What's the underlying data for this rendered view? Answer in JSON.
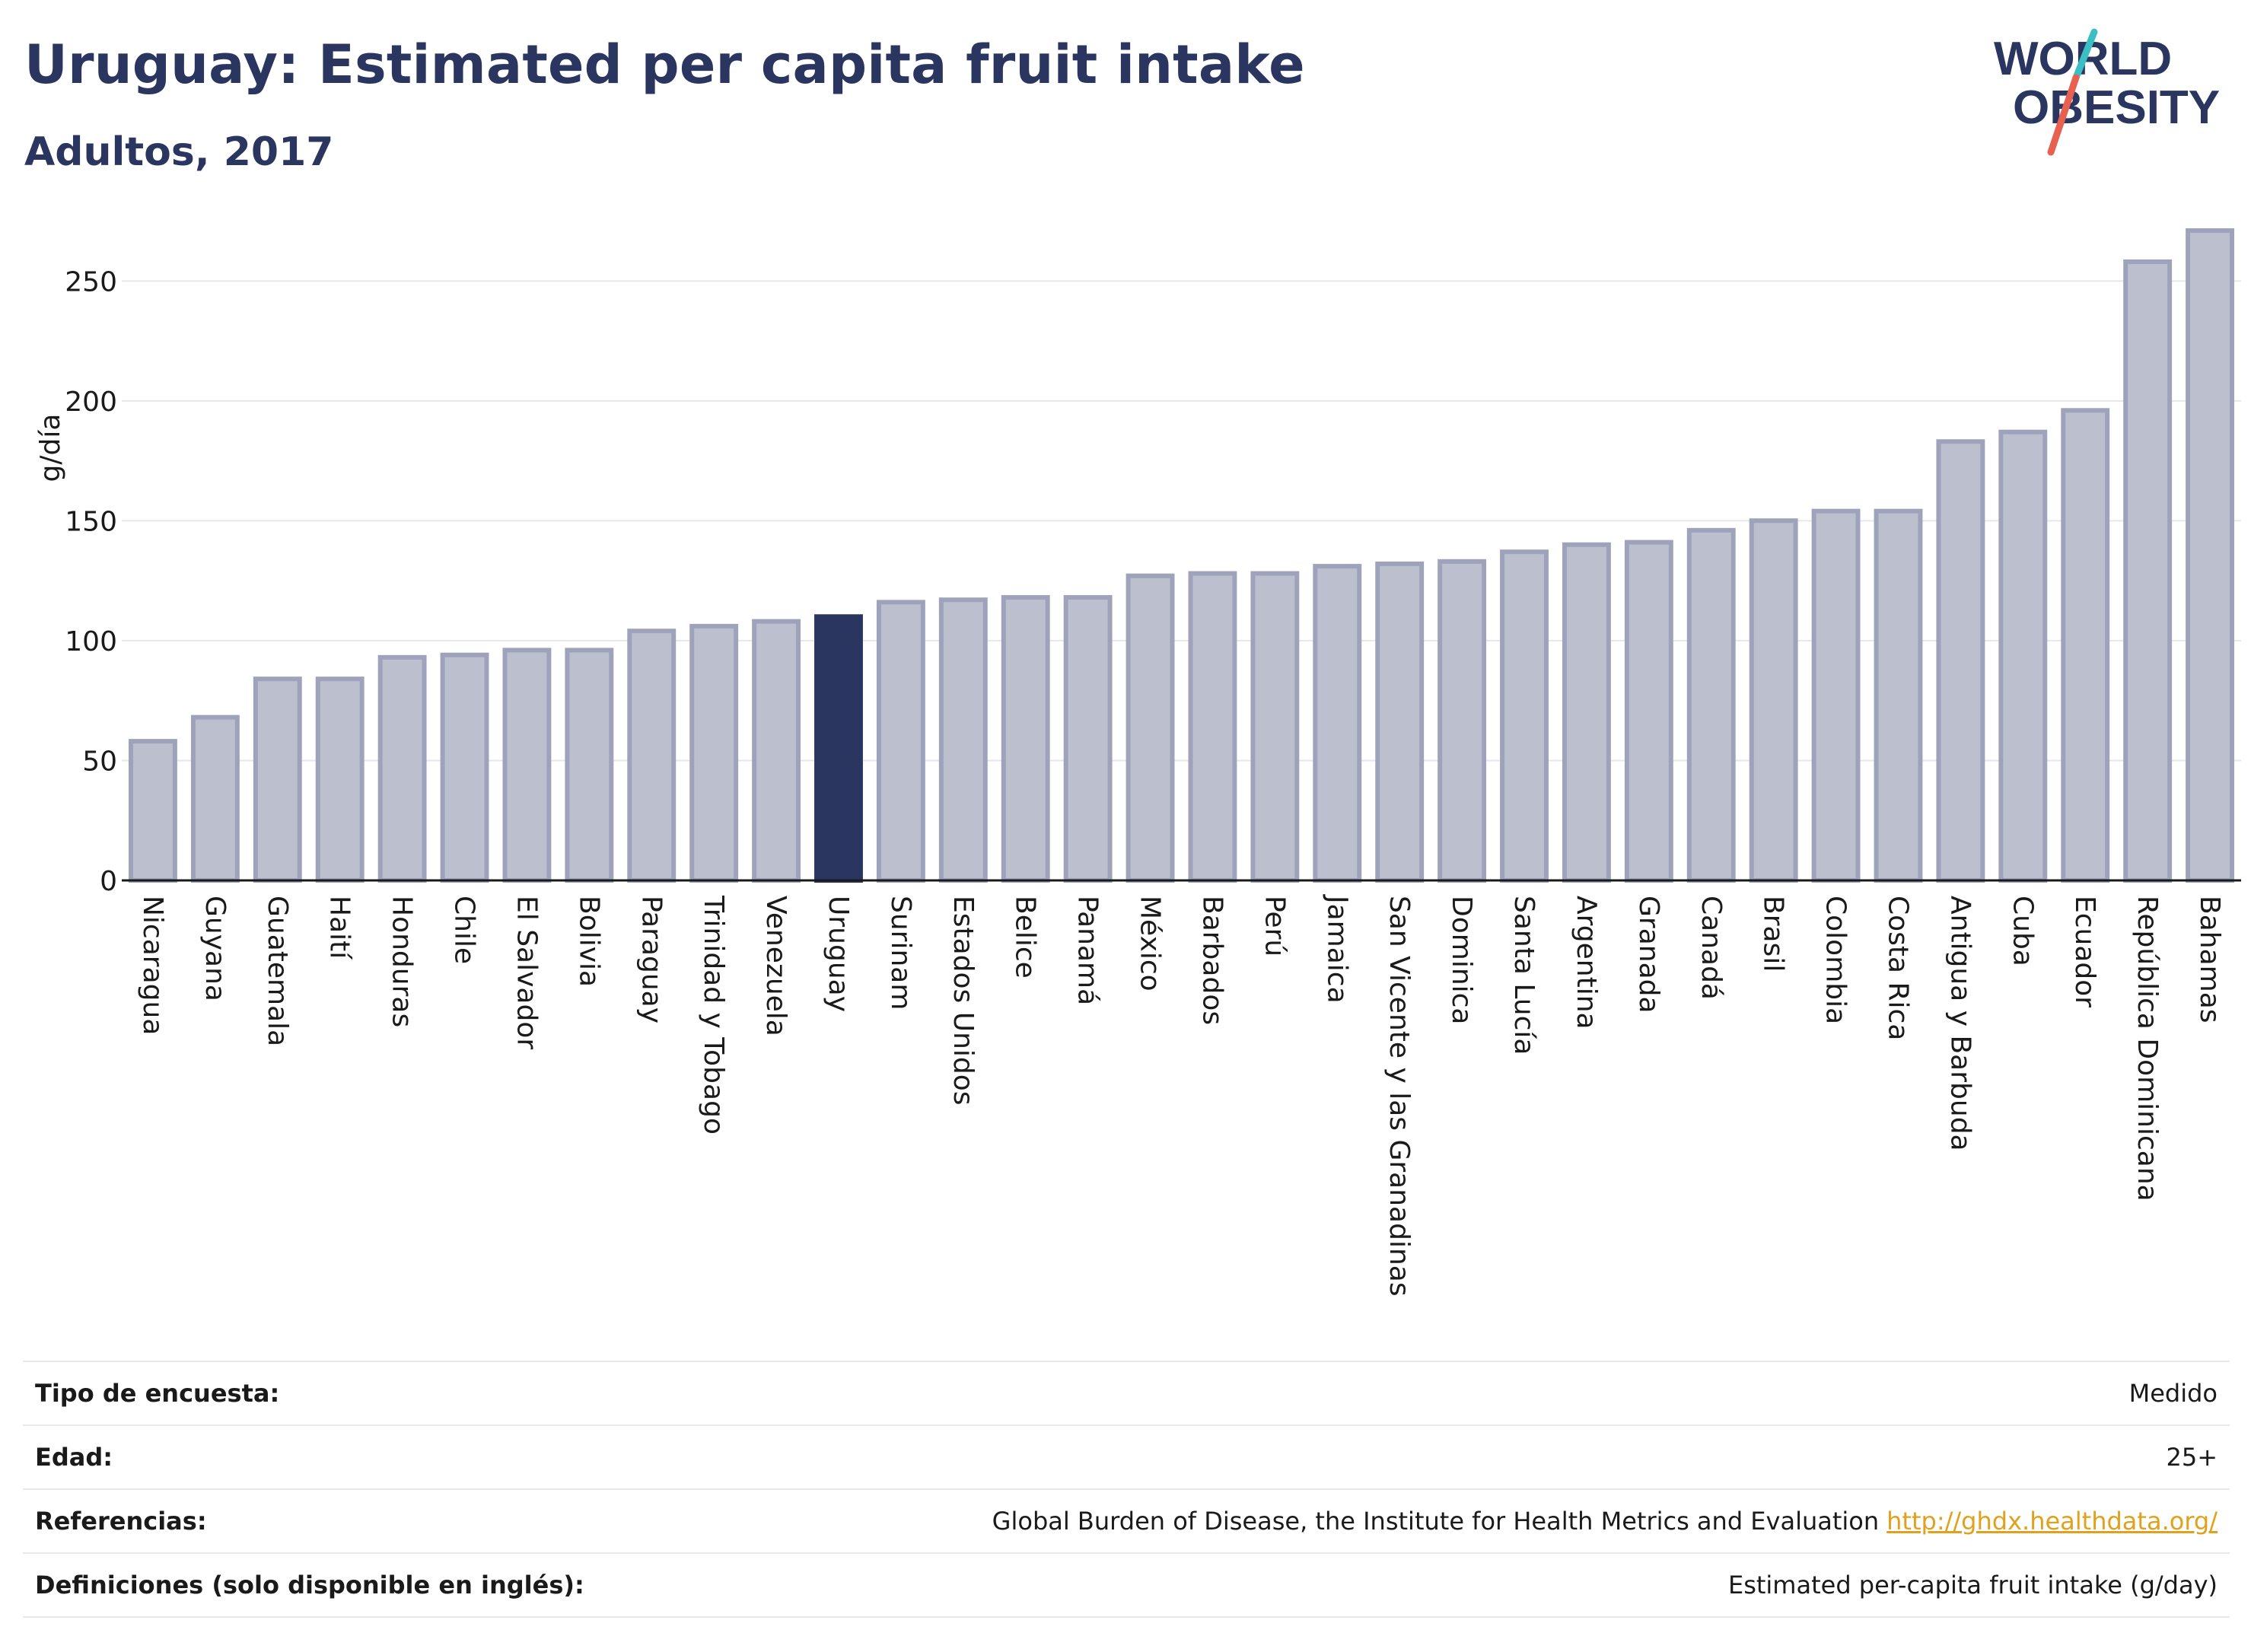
{
  "header": {
    "title": "Uruguay: Estimated per capita fruit intake",
    "subtitle": "Adultos, 2017"
  },
  "logo": {
    "line1": "WORLD",
    "line2": "OBESITY"
  },
  "colors": {
    "bar_default_fill": "#bcc0ce",
    "bar_default_stroke": "#9ea3bb",
    "bar_highlight": "#2b3660",
    "title": "#2b3660",
    "grid": "#e6e6ec",
    "link": "#e0a21c",
    "logo_teal": "#3bbfc4",
    "logo_red": "#e8604f"
  },
  "chart_data": {
    "type": "bar",
    "title": "Uruguay: Estimated per capita fruit intake",
    "subtitle": "Adultos, 2017",
    "ylabel": "g/día",
    "xlabel": "",
    "ylim": [
      0,
      272
    ],
    "yticks": [
      0,
      50,
      100,
      150,
      200,
      250
    ],
    "grid": true,
    "highlight": "Uruguay",
    "categories": [
      "Nicaragua",
      "Guyana",
      "Guatemala",
      "Haití",
      "Honduras",
      "Chile",
      "El Salvador",
      "Bolivia",
      "Paraguay",
      "Trinidad y Tobago",
      "Venezuela",
      "Uruguay",
      "Surinam",
      "Estados Unidos",
      "Belice",
      "Panamá",
      "México",
      "Barbados",
      "Perú",
      "Jamaica",
      "San Vicente y las Granadinas",
      "Dominica",
      "Santa Lucía",
      "Argentina",
      "Granada",
      "Canadá",
      "Brasil",
      "Colombia",
      "Costa Rica",
      "Antigua y Barbuda",
      "Cuba",
      "Ecuador",
      "República Dominicana",
      "Bahamas"
    ],
    "values": [
      59,
      69,
      85,
      85,
      94,
      95,
      97,
      97,
      105,
      107,
      109,
      111,
      117,
      118,
      119,
      119,
      128,
      129,
      129,
      132,
      133,
      134,
      138,
      141,
      142,
      147,
      151,
      155,
      155,
      184,
      188,
      197,
      259,
      272
    ]
  },
  "meta": [
    {
      "label": "Tipo de encuesta:",
      "value": "Medido"
    },
    {
      "label": "Edad:",
      "value": "25+"
    },
    {
      "label": "Referencias:",
      "value": "Global Burden of Disease, the Institute for Health Metrics and Evaluation",
      "link": "http://ghdx.healthdata.org/"
    },
    {
      "label": "Definiciones (solo disponible en inglés):",
      "value": "Estimated per-capita fruit intake (g/day)"
    }
  ]
}
